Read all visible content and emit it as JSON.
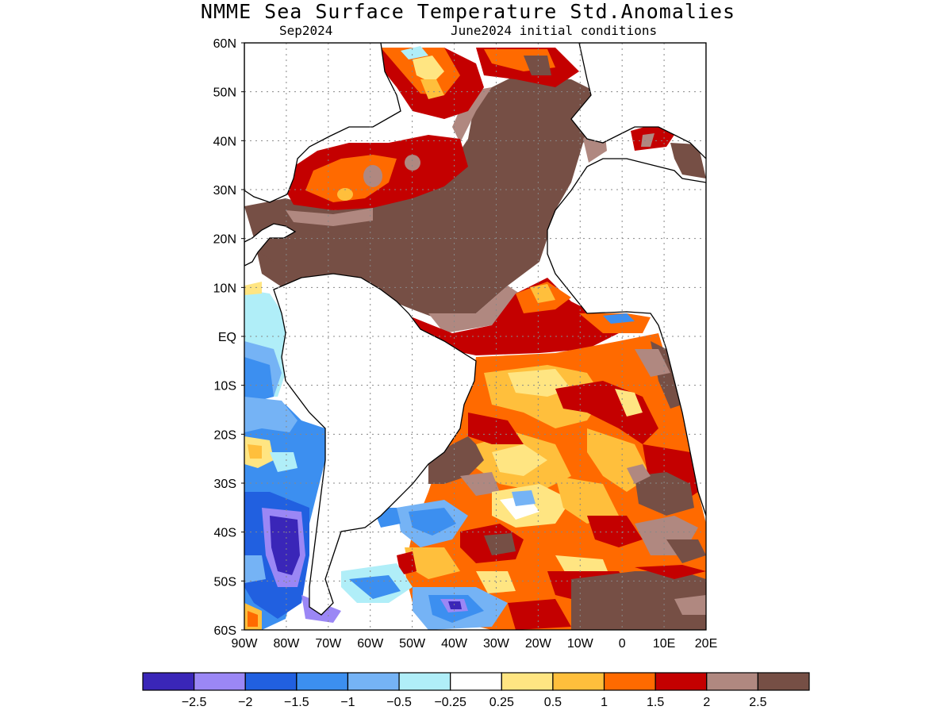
{
  "title": "NMME Sea Surface Temperature Std.Anomalies",
  "subtitle_left": "Sep2024",
  "subtitle_right": "June2024 initial conditions",
  "lat_labels": [
    "60N",
    "50N",
    "40N",
    "30N",
    "20N",
    "10N",
    "EQ",
    "10S",
    "20S",
    "30S",
    "40S",
    "50S",
    "60S"
  ],
  "lon_labels": [
    "90W",
    "80W",
    "70W",
    "60W",
    "50W",
    "40W",
    "30W",
    "20W",
    "10W",
    "0",
    "10E",
    "20E"
  ],
  "lat_range": [
    -60,
    60
  ],
  "lon_range": [
    -90,
    20
  ],
  "grid": true,
  "colorbar": {
    "colors": [
      "#3a26b8",
      "#9b87f5",
      "#2160e0",
      "#3c8ff0",
      "#75b3f5",
      "#b0eef8",
      "#ffffff",
      "#ffe582",
      "#ffbf3c",
      "#ff6a00",
      "#c40000",
      "#b08880",
      "#764f45"
    ],
    "tick_labels": [
      "−2.5",
      "−2",
      "−1.5",
      "−1",
      "−0.5",
      "−0.25",
      "0.25",
      "0.5",
      "1",
      "1.5",
      "2",
      "2.5"
    ]
  },
  "colors": {
    "brown": "#764f45",
    "light_brown": "#b08880",
    "dark_red": "#c40000",
    "orange": "#ff6a00",
    "light_orange": "#ffbf3c",
    "yellow": "#ffe582",
    "light_blue": "#b0eef8",
    "blue": "#3c8ff0",
    "mid_blue": "#2160e0",
    "lavender": "#9b87f5",
    "deep_purple": "#3a26b8"
  }
}
